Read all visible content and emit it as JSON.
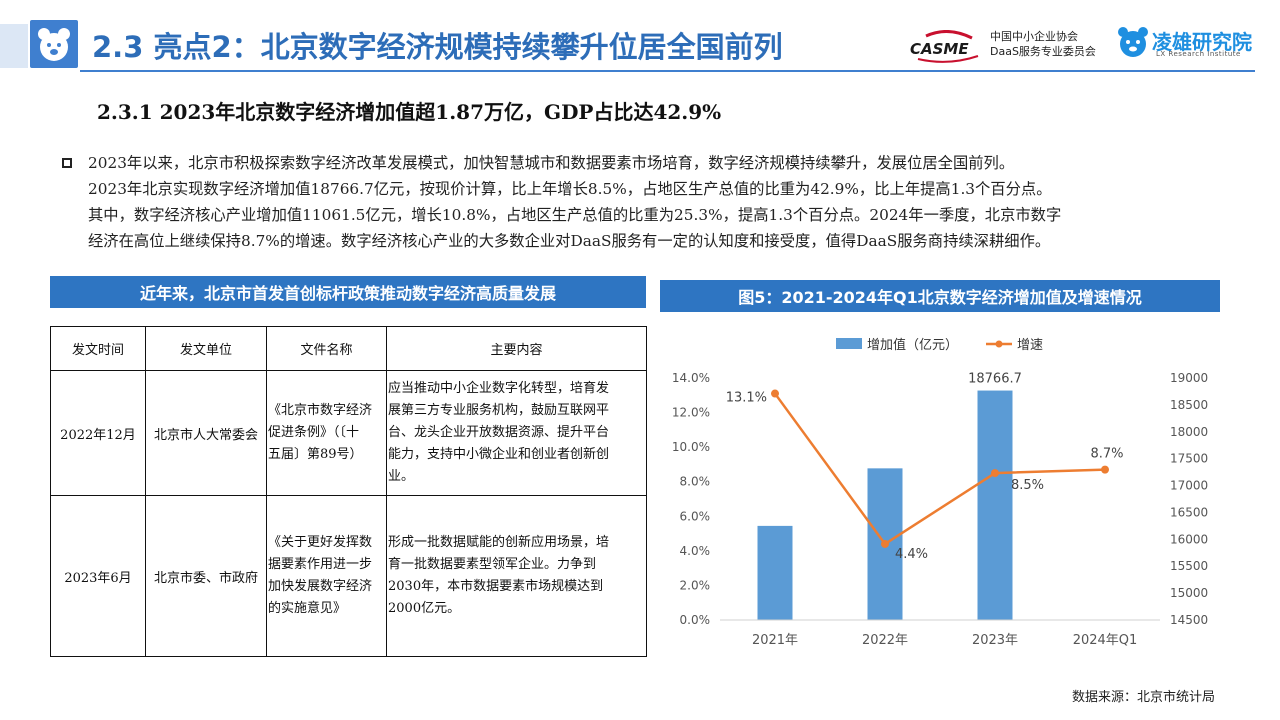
{
  "header": {
    "title": "2.3 亮点2：北京数字经济规模持续攀升位居全国前列",
    "casme_logo_text": "CASME",
    "casme_org_line1": "中国中小企业协会",
    "casme_org_line2": "DaaS服务专业委员会",
    "lx_name": "凌雄研究院",
    "lx_sub": "LX Research Institute"
  },
  "subtitle": "2.3.1 2023年北京数字经济增加值超1.87万亿，GDP占比达42.9%",
  "paragraph": {
    "lines": [
      "2023年以来，北京市积极探索数字经济改革发展模式，加快智慧城市和数据要素市场培育，数字经济规模持续攀升，发展位居全国前列。",
      "2023年北京实现数字经济增加值18766.7亿元，按现价计算，比上年增长8.5%，占地区生产总值的比重为42.9%，比上年提高1.3个百分点。",
      "其中，数字经济核心产业增加值11061.5亿元，增长10.8%，占地区生产总值的比重为25.3%，提高1.3个百分点。2024年一季度，北京市数字",
      "经济在高位上继续保持8.7%的增速。数字经济核心产业的大多数企业对DaaS服务有一定的认知度和接受度，值得DaaS服务商持续深耕细作。"
    ]
  },
  "policy_table": {
    "banner": "近年来，北京市首发首创标杆政策推动数字经济高质量发展",
    "headers": [
      "发文时间",
      "发文单位",
      "文件名称",
      "主要内容"
    ],
    "rows": [
      {
        "date": "2022年12月",
        "org": "北京市人大常委会",
        "doc_lines": [
          "《北京市数字经济",
          "促进条例》（〔十",
          "五届〕第89号）"
        ],
        "content_lines": [
          "应当推动中小企业数字化转型，培育发",
          "展第三方专业服务机构，鼓励互联网平",
          "台、龙头企业开放数据资源、提升平台",
          "能力，支持中小微企业和创业者创新创",
          "业。"
        ]
      },
      {
        "date": "2023年6月",
        "org": "北京市委、市政府",
        "doc_lines": [
          "《关于更好发挥数",
          "据要素作用进一步",
          "加快发展数字经济",
          "的实施意见》"
        ],
        "content_lines": [
          "形成一批数据赋能的创新应用场景，培",
          "育一批数据要素型领军企业。力争到",
          "2030年，本市数据要素市场规模达到",
          "2000亿元。"
        ]
      }
    ]
  },
  "chart_banner": "图5：2021-2024年Q1北京数字经济增加值及增速情况",
  "chart_data": {
    "type": "bar",
    "categories": [
      "2021年",
      "2022年",
      "2023年",
      "2024年Q1"
    ],
    "series": [
      {
        "name": "增加值（亿元）",
        "type": "bar",
        "axis": "right",
        "values": [
          16250,
          17320,
          18766.7,
          null
        ],
        "labels": [
          "",
          "",
          "18766.7",
          ""
        ],
        "color": "#5b9bd5"
      },
      {
        "name": "增速",
        "type": "line",
        "axis": "left",
        "values": [
          13.1,
          4.4,
          8.5,
          8.7
        ],
        "labels": [
          "13.1%",
          "4.4%",
          "8.5%",
          "8.7%"
        ],
        "color": "#ed7d31"
      }
    ],
    "y_left": {
      "min": 0,
      "max": 14,
      "ticks": [
        "0.0%",
        "2.0%",
        "4.0%",
        "6.0%",
        "8.0%",
        "10.0%",
        "12.0%",
        "14.0%"
      ]
    },
    "y_right": {
      "min": 14500,
      "max": 19000,
      "ticks": [
        "14500",
        "15000",
        "15500",
        "16000",
        "16500",
        "17000",
        "17500",
        "18000",
        "18500",
        "19000"
      ]
    },
    "legend_position": "top",
    "grid": false
  },
  "source": "数据来源：北京市统计局",
  "colors": {
    "accent": "#2e75c2",
    "title_blue": "#2d6db8",
    "bar": "#5b9bd5",
    "line": "#ed7d31"
  }
}
